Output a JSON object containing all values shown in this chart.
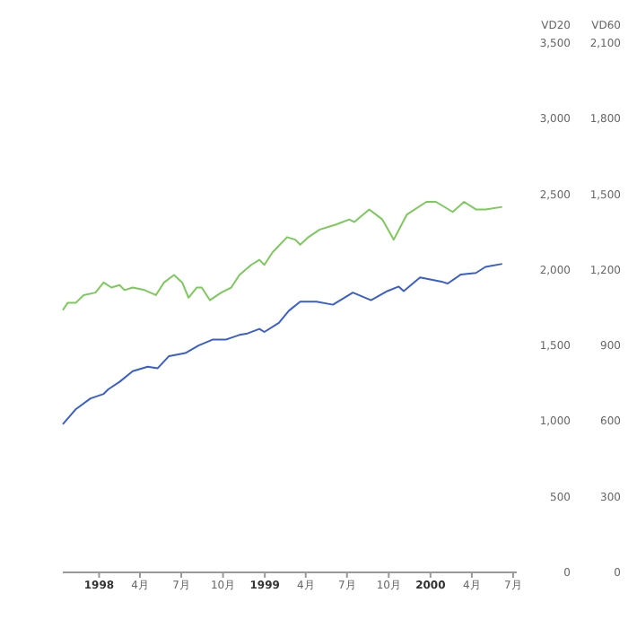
{
  "chart_data": {
    "type": "line",
    "ylabel": "VD20",
    "y2label": "VD60",
    "xlim": [
      "1997-10-13",
      "2000-07-09"
    ],
    "xticks": [
      {
        "value": "1998-01-01",
        "label": "1998"
      },
      {
        "value": "1998-04-01",
        "label": "4月"
      },
      {
        "value": "1998-07-01",
        "label": "7月"
      },
      {
        "value": "1998-10-01",
        "label": "10月"
      },
      {
        "value": "1999-01-01",
        "label": "1999"
      },
      {
        "value": "1999-04-01",
        "label": "4月"
      },
      {
        "value": "1999-07-01",
        "label": "7月"
      },
      {
        "value": "1999-10-01",
        "label": "10月"
      },
      {
        "value": "2000-01-01",
        "label": "2000"
      },
      {
        "value": "2000-04-01",
        "label": "4月"
      },
      {
        "value": "2000-07-01",
        "label": "7月"
      }
    ],
    "ylim": [
      0,
      3500
    ],
    "yticks": [
      0,
      {
        "value": 500,
        "label": "500"
      },
      {
        "value": 1000,
        "label": "1,000"
      },
      {
        "value": 1500,
        "label": "1,500"
      },
      {
        "value": 2000,
        "label": "2,000"
      },
      {
        "value": 2500,
        "label": "2,500"
      },
      {
        "value": 3000,
        "label": "3,000"
      },
      {
        "value": 3500,
        "label": "3,500"
      }
    ],
    "y2lim": [
      0,
      2100
    ],
    "y2ticks": [
      0,
      300,
      600,
      900,
      {
        "value": 1200,
        "label": "1,200"
      },
      {
        "value": 1500,
        "label": "1,500"
      },
      {
        "value": 1800,
        "label": "1,800"
      },
      {
        "value": 2100,
        "label": "2,100"
      }
    ],
    "marker": "none",
    "line_style": "solid",
    "series": [
      {
        "color": "#3a5fcd",
        "x": [
          "1997-10-13",
          "1997-11-11",
          "1997-12-13",
          "1998-01-11",
          "1998-01-21",
          "1998-02-15",
          "1998-03-16",
          "1998-04-18",
          "1998-05-10",
          "1998-06-04",
          "1998-07-10",
          "1998-08-08",
          "1998-09-09",
          "1998-10-08",
          "1998-11-06",
          "1998-11-24",
          "1998-12-20",
          "1998-12-31",
          "1999-02-01",
          "1999-02-23",
          "1999-03-20",
          "1999-04-25",
          "1999-05-31",
          "1999-07-14",
          "1999-08-23",
          "1999-09-28",
          "1999-10-23",
          "1999-11-03",
          "1999-12-09",
          "2000-01-28",
          "2000-02-08",
          "2000-03-08",
          "2000-04-10",
          "2000-05-01",
          "2000-06-07"
        ],
        "values": [
          980,
          1080,
          1150,
          1180,
          1210,
          1260,
          1330,
          1360,
          1350,
          1430,
          1450,
          1500,
          1540,
          1540,
          1570,
          1580,
          1610,
          1590,
          1650,
          1730,
          1790,
          1790,
          1770,
          1850,
          1800,
          1860,
          1890,
          1860,
          1950,
          1920,
          1910,
          1970,
          1980,
          2020,
          2040
        ]
      },
      {
        "color": "#7cc95c",
        "axis": "y2",
        "x": [
          "1997-10-13",
          "1997-10-24",
          "1997-11-11",
          "1997-11-28",
          "1997-12-24",
          "1998-01-11",
          "1998-01-28",
          "1998-02-15",
          "1998-02-26",
          "1998-03-16",
          "1998-04-11",
          "1998-05-06",
          "1998-05-24",
          "1998-06-15",
          "1998-07-03",
          "1998-07-17",
          "1998-08-04",
          "1998-08-15",
          "1998-09-02",
          "1998-09-27",
          "1998-10-19",
          "1998-11-06",
          "1998-12-02",
          "1998-12-20",
          "1998-12-31",
          "1999-01-18",
          "1999-02-19",
          "1999-03-09",
          "1999-03-20",
          "1999-04-07",
          "1999-05-02",
          "1999-06-07",
          "1999-07-06",
          "1999-07-17",
          "1999-08-19",
          "1999-09-17",
          "1999-10-12",
          "1999-11-10",
          "1999-12-23",
          "2000-01-13",
          "2000-02-19",
          "2000-03-15",
          "2000-04-10",
          "2000-05-01",
          "2000-06-07"
        ],
        "values": [
          1040,
          1070,
          1070,
          1100,
          1110,
          1150,
          1130,
          1140,
          1120,
          1130,
          1120,
          1100,
          1150,
          1180,
          1150,
          1090,
          1130,
          1130,
          1080,
          1110,
          1130,
          1180,
          1220,
          1240,
          1220,
          1270,
          1330,
          1320,
          1300,
          1330,
          1360,
          1380,
          1400,
          1390,
          1440,
          1400,
          1320,
          1420,
          1470,
          1470,
          1430,
          1470,
          1440,
          1440,
          1450
        ]
      }
    ]
  }
}
